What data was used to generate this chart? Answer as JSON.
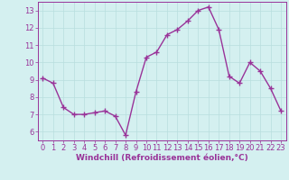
{
  "x": [
    0,
    1,
    2,
    3,
    4,
    5,
    6,
    7,
    8,
    9,
    10,
    11,
    12,
    13,
    14,
    15,
    16,
    17,
    18,
    19,
    20,
    21,
    22,
    23
  ],
  "y": [
    9.1,
    8.8,
    7.4,
    7.0,
    7.0,
    7.1,
    7.2,
    6.9,
    5.8,
    8.3,
    10.3,
    10.6,
    11.6,
    11.9,
    12.4,
    13.0,
    13.2,
    11.9,
    9.2,
    8.8,
    10.0,
    9.5,
    8.5,
    7.2
  ],
  "line_color": "#993399",
  "marker": "+",
  "markersize": 4,
  "linewidth": 1.0,
  "background_color": "#d4f0f0",
  "grid_color": "#b8dede",
  "xlabel": "Windchill (Refroidissement éolien,°C)",
  "xlabel_color": "#993399",
  "xlabel_fontsize": 6.5,
  "tick_color": "#993399",
  "tick_fontsize": 6,
  "ylim": [
    5.5,
    13.5
  ],
  "yticks": [
    6,
    7,
    8,
    9,
    10,
    11,
    12,
    13
  ],
  "xlim": [
    -0.5,
    23.5
  ],
  "xticks": [
    0,
    1,
    2,
    3,
    4,
    5,
    6,
    7,
    8,
    9,
    10,
    11,
    12,
    13,
    14,
    15,
    16,
    17,
    18,
    19,
    20,
    21,
    22,
    23
  ],
  "spine_color": "#993399",
  "axis_bg": "#d4f0f0"
}
